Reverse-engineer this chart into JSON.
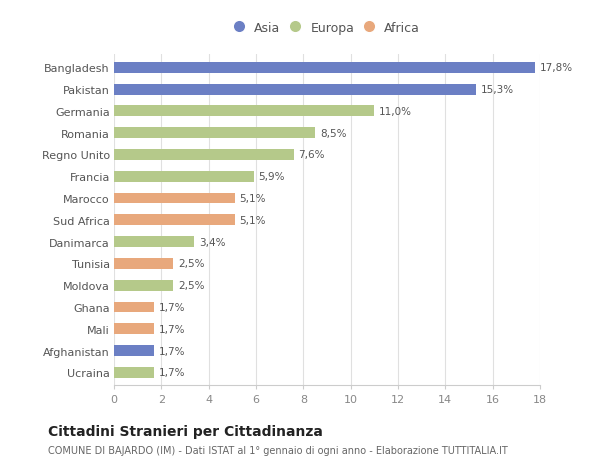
{
  "categories": [
    "Ucraina",
    "Afghanistan",
    "Mali",
    "Ghana",
    "Moldova",
    "Tunisia",
    "Danimarca",
    "Sud Africa",
    "Marocco",
    "Francia",
    "Regno Unito",
    "Romania",
    "Germania",
    "Pakistan",
    "Bangladesh"
  ],
  "values": [
    1.7,
    1.7,
    1.7,
    1.7,
    2.5,
    2.5,
    3.4,
    5.1,
    5.1,
    5.9,
    7.6,
    8.5,
    11.0,
    15.3,
    17.8
  ],
  "labels": [
    "1,7%",
    "1,7%",
    "1,7%",
    "1,7%",
    "2,5%",
    "2,5%",
    "3,4%",
    "5,1%",
    "5,1%",
    "5,9%",
    "7,6%",
    "8,5%",
    "11,0%",
    "15,3%",
    "17,8%"
  ],
  "colors": [
    "#b5c98a",
    "#6b7fc4",
    "#e8a87c",
    "#e8a87c",
    "#b5c98a",
    "#e8a87c",
    "#b5c98a",
    "#e8a87c",
    "#e8a87c",
    "#b5c98a",
    "#b5c98a",
    "#b5c98a",
    "#b5c98a",
    "#6b7fc4",
    "#6b7fc4"
  ],
  "legend_labels": [
    "Asia",
    "Europa",
    "Africa"
  ],
  "legend_colors": [
    "#6b7fc4",
    "#b5c98a",
    "#e8a87c"
  ],
  "title": "Cittadini Stranieri per Cittadinanza",
  "subtitle": "COMUNE DI BAJARDO (IM) - Dati ISTAT al 1° gennaio di ogni anno - Elaborazione TUTTITALIA.IT",
  "xlim": [
    0,
    18
  ],
  "xticks": [
    0,
    2,
    4,
    6,
    8,
    10,
    12,
    14,
    16,
    18
  ],
  "background_color": "#ffffff",
  "grid_color": "#e0e0e0",
  "bar_height": 0.5
}
